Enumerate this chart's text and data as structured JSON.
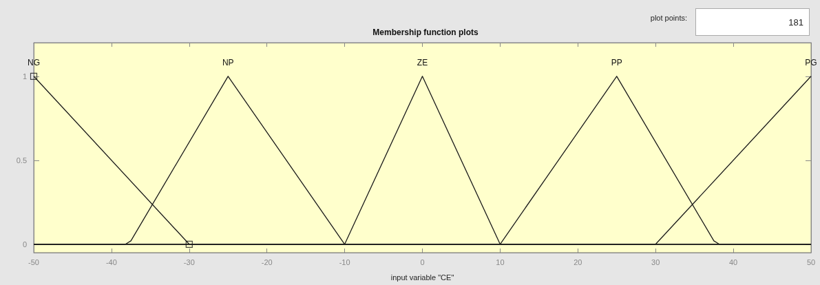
{
  "chart_data": {
    "type": "line",
    "title": "Membership function plots",
    "xlabel": "input variable \"CE\"",
    "annotations": [
      "plot points:",
      "181"
    ],
    "series": [
      {
        "name": "NG",
        "color": "#1a1a1a",
        "x": [
          -50,
          -30,
          50
        ],
        "values": [
          1,
          0,
          0
        ]
      },
      {
        "name": "NP",
        "color": "#1a1a1a",
        "x": [
          -50,
          -38.2,
          -37.5,
          -25,
          -10,
          50
        ],
        "values": [
          0,
          0,
          0.02,
          1,
          0,
          0
        ]
      },
      {
        "name": "ZE",
        "color": "#1a1a1a",
        "x": [
          -50,
          -10,
          0,
          10,
          50
        ],
        "values": [
          0,
          0,
          1,
          0,
          0
        ]
      },
      {
        "name": "PP",
        "color": "#1a1a1a",
        "x": [
          -50,
          10,
          25,
          37.5,
          38.2,
          50
        ],
        "values": [
          0,
          0,
          1,
          0.02,
          0,
          0
        ]
      },
      {
        "name": "PG",
        "color": "#1a1a1a",
        "x": [
          -50,
          30,
          50
        ],
        "values": [
          0,
          0,
          1
        ]
      },
      {
        "type": "scatter",
        "marker": "square",
        "color": "#1a1a1a",
        "x": [
          -50,
          -30
        ],
        "values": [
          1,
          0
        ]
      }
    ],
    "xlim": [
      -50,
      50
    ],
    "xticks": [
      -50,
      -40,
      -30,
      -20,
      -10,
      0,
      10,
      20,
      30,
      40,
      50
    ],
    "ylim": [
      -0.05,
      1.2
    ],
    "yticks": [
      0,
      0.5,
      1
    ],
    "line_style": "solid",
    "grid": false,
    "legend": false
  }
}
